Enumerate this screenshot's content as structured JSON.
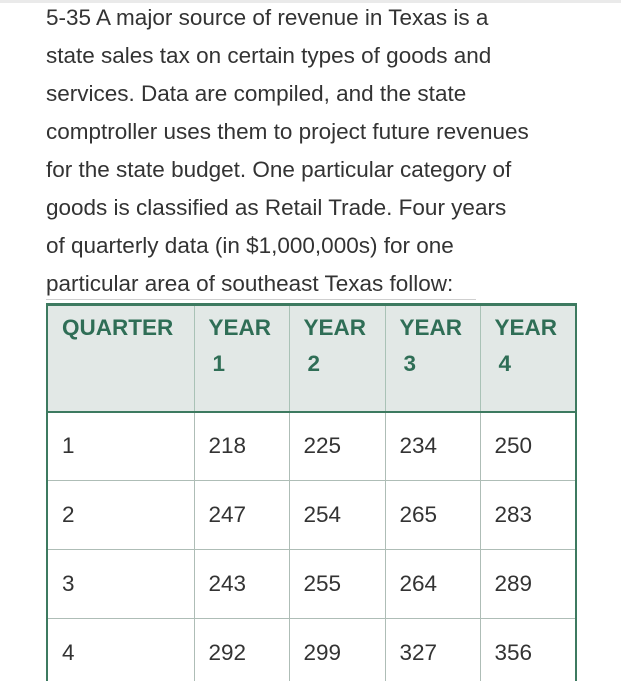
{
  "problem": {
    "lines": [
      "5-35 A major source of revenue in Texas is a",
      "state sales tax on certain types of goods and",
      "services. Data are compiled, and the state",
      "comptroller uses them to project future revenues",
      "for the state budget. One particular category of",
      "goods is classified as Retail Trade. Four years",
      "of quarterly data (in $1,000,000s) for one",
      "particular area of southeast Texas follow:"
    ]
  },
  "table": {
    "headers": [
      {
        "line1": "QUARTER",
        "line2": ""
      },
      {
        "line1": "YEAR",
        "line2": "1"
      },
      {
        "line1": "YEAR",
        "line2": "2"
      },
      {
        "line1": "YEAR",
        "line2": "3"
      },
      {
        "line1": "YEAR",
        "line2": "4"
      }
    ],
    "rows": [
      [
        "1",
        "218",
        "225",
        "234",
        "250"
      ],
      [
        "2",
        "247",
        "254",
        "265",
        "283"
      ],
      [
        "3",
        "243",
        "255",
        "264",
        "289"
      ],
      [
        "4",
        "292",
        "299",
        "327",
        "356"
      ]
    ]
  },
  "colors": {
    "header_text": "#2f6e56",
    "header_bg": "#e2e8e6",
    "table_border": "#3d7a60",
    "body_text": "#333333"
  }
}
